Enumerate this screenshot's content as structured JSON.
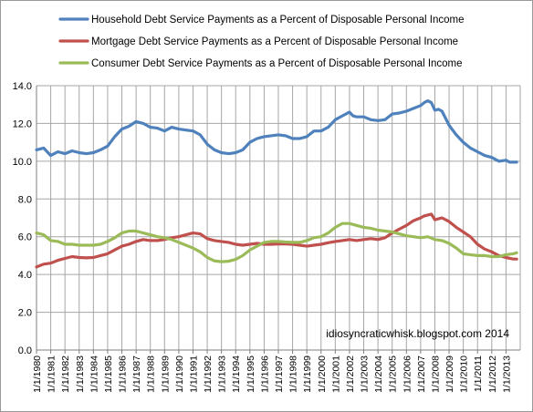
{
  "chart_data": {
    "type": "line",
    "title": "",
    "xlabel": "",
    "ylabel": "",
    "ylim": [
      0,
      14
    ],
    "yticks": [
      "0.0",
      "2.0",
      "4.0",
      "6.0",
      "8.0",
      "10.0",
      "12.0",
      "14.0"
    ],
    "xlim": [
      1980,
      2014
    ],
    "xtick_labels": [
      "1/1/1980",
      "1/1/1981",
      "1/1/1982",
      "1/1/1983",
      "1/1/1984",
      "1/1/1985",
      "1/1/1986",
      "1/1/1987",
      "1/1/1988",
      "1/1/1989",
      "1/1/1990",
      "1/1/1991",
      "1/1/1992",
      "1/1/1993",
      "1/1/1994",
      "1/1/1995",
      "1/1/1996",
      "1/1/1997",
      "1/1/1998",
      "1/1/1999",
      "1/1/2000",
      "1/1/2001",
      "1/1/2002",
      "1/1/2003",
      "1/1/2004",
      "1/1/2005",
      "1/1/2006",
      "1/1/2007",
      "1/1/2008",
      "1/1/2009",
      "1/1/2010",
      "1/1/2011",
      "1/1/2012",
      "1/1/2013"
    ],
    "grid": "vertical and horizontal",
    "legend_position": "top",
    "annotation": "idiosyncraticwhisk.blogspot.com  2014",
    "series": [
      {
        "name": "Household Debt Service Payments as a Percent of Disposable Personal Income",
        "color": "#4f81bd",
        "x": [
          1980,
          1980.5,
          1981,
          1981.5,
          1982,
          1982.5,
          1983,
          1983.5,
          1984,
          1984.5,
          1985,
          1985.5,
          1986,
          1986.5,
          1987,
          1987.5,
          1988,
          1988.5,
          1989,
          1989.5,
          1990,
          1990.5,
          1991,
          1991.5,
          1992,
          1992.5,
          1993,
          1993.5,
          1994,
          1994.5,
          1995,
          1995.5,
          1996,
          1996.5,
          1997,
          1997.5,
          1998,
          1998.5,
          1999,
          1999.5,
          2000,
          2000.5,
          2001,
          2001.5,
          2002,
          2002.25,
          2002.5,
          2003,
          2003.5,
          2004,
          2004.5,
          2005,
          2005.5,
          2006,
          2006.5,
          2007,
          2007.25,
          2007.5,
          2007.75,
          2008,
          2008.25,
          2008.5,
          2009,
          2009.5,
          2010,
          2010.5,
          2011,
          2011.5,
          2012,
          2012.5,
          2013,
          2013.25,
          2013.5,
          2013.75
        ],
        "y": [
          10.6,
          10.7,
          10.3,
          10.5,
          10.4,
          10.55,
          10.45,
          10.4,
          10.45,
          10.6,
          10.8,
          11.3,
          11.7,
          11.85,
          12.1,
          12.0,
          11.8,
          11.75,
          11.6,
          11.8,
          11.7,
          11.65,
          11.6,
          11.4,
          10.9,
          10.6,
          10.45,
          10.4,
          10.45,
          10.6,
          11.0,
          11.2,
          11.3,
          11.35,
          11.4,
          11.35,
          11.2,
          11.2,
          11.3,
          11.6,
          11.6,
          11.8,
          12.2,
          12.4,
          12.6,
          12.4,
          12.35,
          12.35,
          12.2,
          12.15,
          12.2,
          12.5,
          12.55,
          12.65,
          12.8,
          12.95,
          13.1,
          13.2,
          13.1,
          12.7,
          12.75,
          12.65,
          11.9,
          11.4,
          11.0,
          10.7,
          10.5,
          10.3,
          10.2,
          10.0,
          10.05,
          9.95,
          9.95,
          9.95
        ]
      },
      {
        "name": "Mortgage Debt Service Payments as a Percent of Disposable Personal Income",
        "color": "#c0504d",
        "x": [
          1980,
          1980.5,
          1981,
          1981.5,
          1982,
          1982.5,
          1983,
          1983.5,
          1984,
          1984.5,
          1985,
          1985.5,
          1986,
          1986.5,
          1987,
          1987.5,
          1988,
          1988.5,
          1989,
          1989.5,
          1990,
          1990.5,
          1991,
          1991.5,
          1992,
          1992.5,
          1993,
          1993.5,
          1994,
          1994.5,
          1995,
          1995.5,
          1996,
          1996.5,
          1997,
          1997.5,
          1998,
          1998.5,
          1999,
          1999.5,
          2000,
          2000.5,
          2001,
          2001.5,
          2002,
          2002.5,
          2003,
          2003.5,
          2004,
          2004.5,
          2005,
          2005.5,
          2006,
          2006.5,
          2007,
          2007.25,
          2007.5,
          2007.75,
          2008,
          2008.5,
          2009,
          2009.5,
          2010,
          2010.5,
          2011,
          2011.5,
          2012,
          2012.5,
          2013,
          2013.5,
          2013.75
        ],
        "y": [
          4.4,
          4.55,
          4.6,
          4.75,
          4.85,
          4.95,
          4.9,
          4.88,
          4.9,
          5.0,
          5.1,
          5.3,
          5.5,
          5.6,
          5.75,
          5.85,
          5.8,
          5.8,
          5.85,
          5.95,
          6.0,
          6.1,
          6.2,
          6.15,
          5.9,
          5.8,
          5.75,
          5.7,
          5.6,
          5.55,
          5.6,
          5.65,
          5.6,
          5.6,
          5.62,
          5.62,
          5.6,
          5.55,
          5.5,
          5.55,
          5.6,
          5.68,
          5.75,
          5.8,
          5.85,
          5.8,
          5.85,
          5.9,
          5.85,
          5.95,
          6.2,
          6.4,
          6.6,
          6.85,
          7.0,
          7.1,
          7.15,
          7.2,
          6.9,
          7.0,
          6.8,
          6.5,
          6.25,
          6.0,
          5.6,
          5.35,
          5.2,
          5.0,
          4.9,
          4.82,
          4.82
        ]
      },
      {
        "name": "Consumer Debt Service Payments as a Percent of Disposable Personal Income",
        "color": "#9bbb59",
        "x": [
          1980,
          1980.5,
          1981,
          1981.5,
          1982,
          1982.5,
          1983,
          1983.5,
          1984,
          1984.5,
          1985,
          1985.5,
          1986,
          1986.5,
          1987,
          1987.5,
          1988,
          1988.5,
          1989,
          1989.5,
          1990,
          1990.5,
          1991,
          1991.5,
          1992,
          1992.5,
          1993,
          1993.5,
          1994,
          1994.5,
          1995,
          1995.5,
          1996,
          1996.5,
          1997,
          1997.5,
          1998,
          1998.5,
          1999,
          1999.5,
          2000,
          2000.5,
          2001,
          2001.5,
          2002,
          2002.5,
          2003,
          2003.5,
          2004,
          2004.5,
          2005,
          2005.5,
          2006,
          2006.5,
          2007,
          2007.5,
          2008,
          2008.5,
          2009,
          2009.5,
          2010,
          2010.5,
          2011,
          2011.5,
          2012,
          2012.5,
          2013,
          2013.5,
          2013.75
        ],
        "y": [
          6.2,
          6.1,
          5.8,
          5.75,
          5.6,
          5.6,
          5.55,
          5.55,
          5.55,
          5.6,
          5.75,
          5.95,
          6.2,
          6.3,
          6.3,
          6.2,
          6.1,
          6.0,
          5.95,
          5.85,
          5.7,
          5.55,
          5.4,
          5.2,
          4.9,
          4.72,
          4.68,
          4.7,
          4.8,
          5.0,
          5.3,
          5.5,
          5.7,
          5.75,
          5.75,
          5.72,
          5.7,
          5.7,
          5.8,
          5.95,
          6.0,
          6.2,
          6.5,
          6.7,
          6.7,
          6.6,
          6.5,
          6.45,
          6.35,
          6.3,
          6.25,
          6.15,
          6.05,
          6.0,
          5.95,
          6.0,
          5.85,
          5.8,
          5.65,
          5.4,
          5.1,
          5.05,
          5.0,
          5.0,
          4.95,
          4.95,
          5.05,
          5.1,
          5.15
        ]
      }
    ]
  }
}
